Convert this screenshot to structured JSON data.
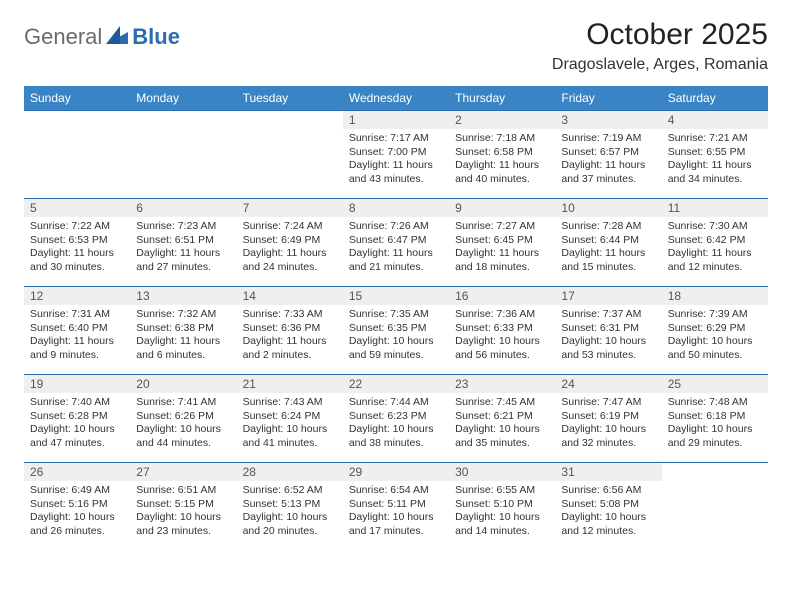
{
  "logo": {
    "text_general": "General",
    "text_blue": "Blue"
  },
  "title": "October 2025",
  "location": "Dragoslavele, Arges, Romania",
  "colors": {
    "header_bg": "#3a84c6",
    "header_text": "#ffffff",
    "day_bar_bg": "#efefef",
    "border": "#2a6db0",
    "background": "#ffffff",
    "text": "#333333",
    "logo_grey": "#6b6b6b",
    "logo_blue": "#2a6db0"
  },
  "day_headers": [
    "Sunday",
    "Monday",
    "Tuesday",
    "Wednesday",
    "Thursday",
    "Friday",
    "Saturday"
  ],
  "weeks": [
    [
      {
        "blank": true
      },
      {
        "blank": true
      },
      {
        "blank": true
      },
      {
        "day": "1",
        "sunrise": "Sunrise: 7:17 AM",
        "sunset": "Sunset: 7:00 PM",
        "daylight": "Daylight: 11 hours and 43 minutes."
      },
      {
        "day": "2",
        "sunrise": "Sunrise: 7:18 AM",
        "sunset": "Sunset: 6:58 PM",
        "daylight": "Daylight: 11 hours and 40 minutes."
      },
      {
        "day": "3",
        "sunrise": "Sunrise: 7:19 AM",
        "sunset": "Sunset: 6:57 PM",
        "daylight": "Daylight: 11 hours and 37 minutes."
      },
      {
        "day": "4",
        "sunrise": "Sunrise: 7:21 AM",
        "sunset": "Sunset: 6:55 PM",
        "daylight": "Daylight: 11 hours and 34 minutes."
      }
    ],
    [
      {
        "day": "5",
        "sunrise": "Sunrise: 7:22 AM",
        "sunset": "Sunset: 6:53 PM",
        "daylight": "Daylight: 11 hours and 30 minutes."
      },
      {
        "day": "6",
        "sunrise": "Sunrise: 7:23 AM",
        "sunset": "Sunset: 6:51 PM",
        "daylight": "Daylight: 11 hours and 27 minutes."
      },
      {
        "day": "7",
        "sunrise": "Sunrise: 7:24 AM",
        "sunset": "Sunset: 6:49 PM",
        "daylight": "Daylight: 11 hours and 24 minutes."
      },
      {
        "day": "8",
        "sunrise": "Sunrise: 7:26 AM",
        "sunset": "Sunset: 6:47 PM",
        "daylight": "Daylight: 11 hours and 21 minutes."
      },
      {
        "day": "9",
        "sunrise": "Sunrise: 7:27 AM",
        "sunset": "Sunset: 6:45 PM",
        "daylight": "Daylight: 11 hours and 18 minutes."
      },
      {
        "day": "10",
        "sunrise": "Sunrise: 7:28 AM",
        "sunset": "Sunset: 6:44 PM",
        "daylight": "Daylight: 11 hours and 15 minutes."
      },
      {
        "day": "11",
        "sunrise": "Sunrise: 7:30 AM",
        "sunset": "Sunset: 6:42 PM",
        "daylight": "Daylight: 11 hours and 12 minutes."
      }
    ],
    [
      {
        "day": "12",
        "sunrise": "Sunrise: 7:31 AM",
        "sunset": "Sunset: 6:40 PM",
        "daylight": "Daylight: 11 hours and 9 minutes."
      },
      {
        "day": "13",
        "sunrise": "Sunrise: 7:32 AM",
        "sunset": "Sunset: 6:38 PM",
        "daylight": "Daylight: 11 hours and 6 minutes."
      },
      {
        "day": "14",
        "sunrise": "Sunrise: 7:33 AM",
        "sunset": "Sunset: 6:36 PM",
        "daylight": "Daylight: 11 hours and 2 minutes."
      },
      {
        "day": "15",
        "sunrise": "Sunrise: 7:35 AM",
        "sunset": "Sunset: 6:35 PM",
        "daylight": "Daylight: 10 hours and 59 minutes."
      },
      {
        "day": "16",
        "sunrise": "Sunrise: 7:36 AM",
        "sunset": "Sunset: 6:33 PM",
        "daylight": "Daylight: 10 hours and 56 minutes."
      },
      {
        "day": "17",
        "sunrise": "Sunrise: 7:37 AM",
        "sunset": "Sunset: 6:31 PM",
        "daylight": "Daylight: 10 hours and 53 minutes."
      },
      {
        "day": "18",
        "sunrise": "Sunrise: 7:39 AM",
        "sunset": "Sunset: 6:29 PM",
        "daylight": "Daylight: 10 hours and 50 minutes."
      }
    ],
    [
      {
        "day": "19",
        "sunrise": "Sunrise: 7:40 AM",
        "sunset": "Sunset: 6:28 PM",
        "daylight": "Daylight: 10 hours and 47 minutes."
      },
      {
        "day": "20",
        "sunrise": "Sunrise: 7:41 AM",
        "sunset": "Sunset: 6:26 PM",
        "daylight": "Daylight: 10 hours and 44 minutes."
      },
      {
        "day": "21",
        "sunrise": "Sunrise: 7:43 AM",
        "sunset": "Sunset: 6:24 PM",
        "daylight": "Daylight: 10 hours and 41 minutes."
      },
      {
        "day": "22",
        "sunrise": "Sunrise: 7:44 AM",
        "sunset": "Sunset: 6:23 PM",
        "daylight": "Daylight: 10 hours and 38 minutes."
      },
      {
        "day": "23",
        "sunrise": "Sunrise: 7:45 AM",
        "sunset": "Sunset: 6:21 PM",
        "daylight": "Daylight: 10 hours and 35 minutes."
      },
      {
        "day": "24",
        "sunrise": "Sunrise: 7:47 AM",
        "sunset": "Sunset: 6:19 PM",
        "daylight": "Daylight: 10 hours and 32 minutes."
      },
      {
        "day": "25",
        "sunrise": "Sunrise: 7:48 AM",
        "sunset": "Sunset: 6:18 PM",
        "daylight": "Daylight: 10 hours and 29 minutes."
      }
    ],
    [
      {
        "day": "26",
        "sunrise": "Sunrise: 6:49 AM",
        "sunset": "Sunset: 5:16 PM",
        "daylight": "Daylight: 10 hours and 26 minutes."
      },
      {
        "day": "27",
        "sunrise": "Sunrise: 6:51 AM",
        "sunset": "Sunset: 5:15 PM",
        "daylight": "Daylight: 10 hours and 23 minutes."
      },
      {
        "day": "28",
        "sunrise": "Sunrise: 6:52 AM",
        "sunset": "Sunset: 5:13 PM",
        "daylight": "Daylight: 10 hours and 20 minutes."
      },
      {
        "day": "29",
        "sunrise": "Sunrise: 6:54 AM",
        "sunset": "Sunset: 5:11 PM",
        "daylight": "Daylight: 10 hours and 17 minutes."
      },
      {
        "day": "30",
        "sunrise": "Sunrise: 6:55 AM",
        "sunset": "Sunset: 5:10 PM",
        "daylight": "Daylight: 10 hours and 14 minutes."
      },
      {
        "day": "31",
        "sunrise": "Sunrise: 6:56 AM",
        "sunset": "Sunset: 5:08 PM",
        "daylight": "Daylight: 10 hours and 12 minutes."
      },
      {
        "blank": true
      }
    ]
  ]
}
